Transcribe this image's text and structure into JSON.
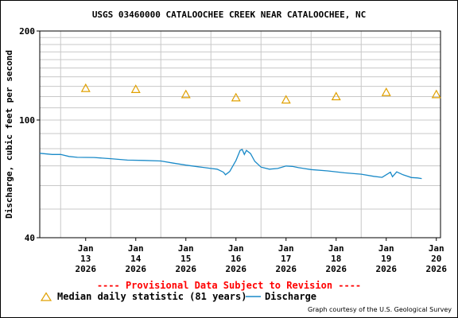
{
  "chart_data": {
    "type": "line",
    "title": "USGS 03460000 CATALOOCHEE CREEK NEAR CATALOOCHEE, NC",
    "ylabel": "Discharge, cubic feet per second",
    "xlabel": "",
    "y_scale": "log",
    "ylim": [
      40,
      200
    ],
    "y_ticks": [
      {
        "value": 40,
        "label": "40"
      },
      {
        "value": 100,
        "label": "100"
      },
      {
        "value": 200,
        "label": "200"
      }
    ],
    "xlim": [
      "2026-01-12T14:00",
      "2026-01-20T14:00"
    ],
    "x_ticks": [
      {
        "date": "2026-01-13",
        "lines": [
          "Jan",
          "13",
          "2026"
        ]
      },
      {
        "date": "2026-01-14",
        "lines": [
          "Jan",
          "14",
          "2026"
        ]
      },
      {
        "date": "2026-01-15",
        "lines": [
          "Jan",
          "15",
          "2026"
        ]
      },
      {
        "date": "2026-01-16",
        "lines": [
          "Jan",
          "16",
          "2026"
        ]
      },
      {
        "date": "2026-01-17",
        "lines": [
          "Jan",
          "17",
          "2026"
        ]
      },
      {
        "date": "2026-01-18",
        "lines": [
          "Jan",
          "18",
          "2026"
        ]
      },
      {
        "date": "2026-01-19",
        "lines": [
          "Jan",
          "19",
          "2026"
        ]
      },
      {
        "date": "2026-01-20",
        "lines": [
          "Jan",
          "20",
          "2026"
        ]
      }
    ],
    "grid": true,
    "legend_placement": "bottom",
    "series": [
      {
        "name": "Median daily statistic (81 years)",
        "marker": "triangle",
        "color": "#e0a000",
        "points": [
          {
            "x": "2026-01-13T12:00",
            "y": 128
          },
          {
            "x": "2026-01-14T12:00",
            "y": 127
          },
          {
            "x": "2026-01-15T12:00",
            "y": 122
          },
          {
            "x": "2026-01-16T12:00",
            "y": 119
          },
          {
            "x": "2026-01-17T12:00",
            "y": 117
          },
          {
            "x": "2026-01-18T12:00",
            "y": 120
          },
          {
            "x": "2026-01-19T12:00",
            "y": 124
          },
          {
            "x": "2026-01-20T12:00",
            "y": 122
          }
        ]
      },
      {
        "name": "Discharge",
        "marker": "line",
        "color": "#1a8ac8",
        "points": [
          {
            "x": "2026-01-12T14:00",
            "y": 77.2
          },
          {
            "x": "2026-01-12T20:00",
            "y": 76.5
          },
          {
            "x": "2026-01-13T00:00",
            "y": 76.5
          },
          {
            "x": "2026-01-13T04:00",
            "y": 75.3
          },
          {
            "x": "2026-01-13T08:00",
            "y": 74.8
          },
          {
            "x": "2026-01-13T16:00",
            "y": 74.7
          },
          {
            "x": "2026-01-14T00:00",
            "y": 74.0
          },
          {
            "x": "2026-01-14T08:00",
            "y": 73.2
          },
          {
            "x": "2026-01-14T16:00",
            "y": 73.0
          },
          {
            "x": "2026-01-15T00:00",
            "y": 72.7
          },
          {
            "x": "2026-01-15T06:00",
            "y": 71.5
          },
          {
            "x": "2026-01-15T12:00",
            "y": 70.4
          },
          {
            "x": "2026-01-15T18:00",
            "y": 69.5
          },
          {
            "x": "2026-01-16T00:00",
            "y": 68.6
          },
          {
            "x": "2026-01-16T03:00",
            "y": 68.2
          },
          {
            "x": "2026-01-16T06:00",
            "y": 66.6
          },
          {
            "x": "2026-01-16T07:00",
            "y": 65.3
          },
          {
            "x": "2026-01-16T09:00",
            "y": 67.0
          },
          {
            "x": "2026-01-16T12:00",
            "y": 73.0
          },
          {
            "x": "2026-01-16T14:00",
            "y": 79.0
          },
          {
            "x": "2026-01-16T15:00",
            "y": 79.5
          },
          {
            "x": "2026-01-16T16:00",
            "y": 76.5
          },
          {
            "x": "2026-01-16T17:00",
            "y": 79.0
          },
          {
            "x": "2026-01-16T19:00",
            "y": 77.0
          },
          {
            "x": "2026-01-16T21:00",
            "y": 72.5
          },
          {
            "x": "2026-01-17T00:00",
            "y": 69.3
          },
          {
            "x": "2026-01-17T04:00",
            "y": 68.2
          },
          {
            "x": "2026-01-17T08:00",
            "y": 68.6
          },
          {
            "x": "2026-01-17T12:00",
            "y": 69.9
          },
          {
            "x": "2026-01-17T15:00",
            "y": 69.7
          },
          {
            "x": "2026-01-17T18:00",
            "y": 69.0
          },
          {
            "x": "2026-01-18T00:00",
            "y": 68.0
          },
          {
            "x": "2026-01-18T08:00",
            "y": 67.3
          },
          {
            "x": "2026-01-18T16:00",
            "y": 66.3
          },
          {
            "x": "2026-01-19T00:00",
            "y": 65.6
          },
          {
            "x": "2026-01-19T06:00",
            "y": 64.5
          },
          {
            "x": "2026-01-19T10:00",
            "y": 64.0
          },
          {
            "x": "2026-01-19T14:00",
            "y": 66.6
          },
          {
            "x": "2026-01-19T15:00",
            "y": 64.3
          },
          {
            "x": "2026-01-19T17:00",
            "y": 66.8
          },
          {
            "x": "2026-01-19T20:00",
            "y": 65.3
          },
          {
            "x": "2026-01-20T00:00",
            "y": 63.9
          },
          {
            "x": "2026-01-20T03:00",
            "y": 63.7
          },
          {
            "x": "2026-01-20T05:00",
            "y": 63.4
          }
        ]
      }
    ]
  },
  "notice": "---- Provisional Data Subject to Revision ----",
  "courtesy": "Graph courtesy of the U.S. Geological Survey"
}
